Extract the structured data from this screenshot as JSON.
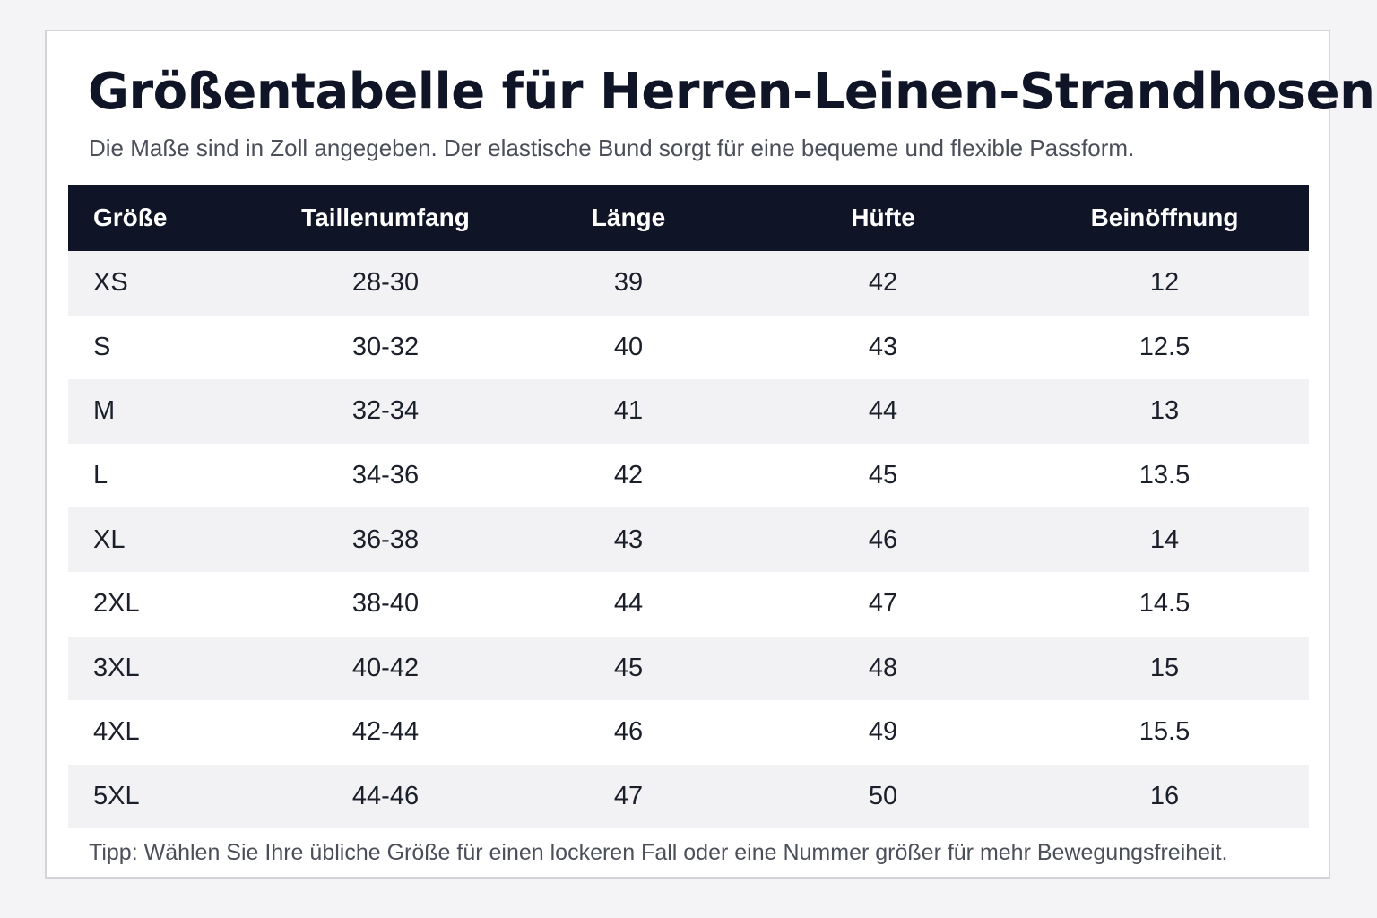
{
  "title": "Größentabelle für Herren-Leinen-Strandhosen",
  "subtitle": "Die Maße sind in Zoll angegeben. Der elastische Bund sorgt für eine bequeme und flexible Passform.",
  "table": {
    "headers": [
      "Größe",
      "Taillenumfang",
      "Länge",
      "Hüfte",
      "Beinöffnung"
    ],
    "rows": [
      [
        "XS",
        "28-30",
        "39",
        "42",
        "12"
      ],
      [
        "S",
        "30-32",
        "40",
        "43",
        "12.5"
      ],
      [
        "M",
        "32-34",
        "41",
        "44",
        "13"
      ],
      [
        "L",
        "34-36",
        "42",
        "45",
        "13.5"
      ],
      [
        "XL",
        "36-38",
        "43",
        "46",
        "14"
      ],
      [
        "2XL",
        "38-40",
        "44",
        "47",
        "14.5"
      ],
      [
        "3XL",
        "40-42",
        "45",
        "48",
        "15"
      ],
      [
        "4XL",
        "42-44",
        "46",
        "49",
        "15.5"
      ],
      [
        "5XL",
        "44-46",
        "47",
        "50",
        "16"
      ]
    ]
  },
  "tip": "Tipp: Wählen Sie Ihre übliche Größe für einen lockeren Fall oder eine Nummer größer für mehr Bewegungsfreiheit.",
  "colors": {
    "header_bg": "#0f1526",
    "header_text": "#ffffff",
    "row_stripe": "#f2f2f5",
    "row_plain": "#ffffff",
    "card_border": "#d3d4da",
    "page_bg": "#f4f4f6"
  }
}
